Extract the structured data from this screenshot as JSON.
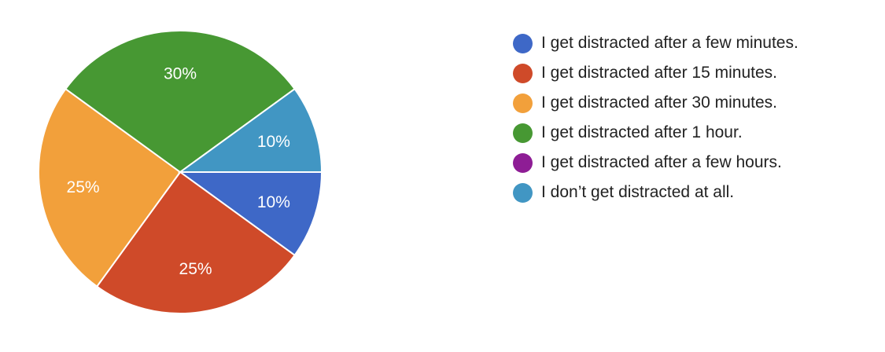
{
  "chart_data": {
    "type": "pie",
    "title": "",
    "legend_position": "right",
    "slices": [
      {
        "label": "I get distracted after a few minutes.",
        "value": 10,
        "display": "10%",
        "color": "#3e68c7"
      },
      {
        "label": "I get distracted after 15 minutes.",
        "value": 25,
        "display": "25%",
        "color": "#cf4a29"
      },
      {
        "label": "I get distracted after 30 minutes.",
        "value": 25,
        "display": "25%",
        "color": "#f2a03b"
      },
      {
        "label": "I get distracted after 1 hour.",
        "value": 30,
        "display": "30%",
        "color": "#479833"
      },
      {
        "label": "I get distracted after a few hours.",
        "value": 0,
        "display": "",
        "color": "#8e1d95"
      },
      {
        "label": "I don’t get distracted at all.",
        "value": 10,
        "display": "10%",
        "color": "#4196c3"
      }
    ]
  }
}
